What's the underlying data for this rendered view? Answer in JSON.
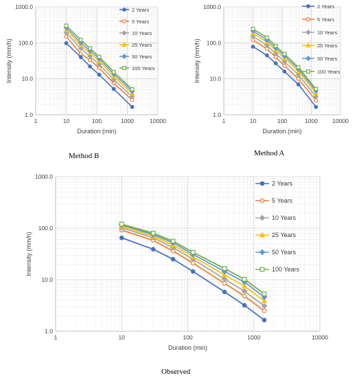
{
  "captions": {
    "b": "Method B",
    "a": "Method A",
    "obs": "Observed"
  },
  "chart_data": [
    {
      "type": "line",
      "panel": "Method B",
      "x_scale": "log",
      "y_scale": "log",
      "xlabel": "Duration (min)",
      "ylabel": "Intensity (mm/h)",
      "xlim": [
        1,
        10000
      ],
      "ylim": [
        1,
        1000
      ],
      "x_ticks": [
        "1",
        "10",
        "100",
        "1000",
        "10000"
      ],
      "y_ticks": [
        "1.0",
        "10.0",
        "100.0",
        "1000.0"
      ],
      "grid": true,
      "legend": "right",
      "x": [
        10,
        30,
        60,
        120,
        360,
        1440
      ],
      "series": [
        {
          "name": "2 Years",
          "color": "#4472C4",
          "marker": "circle",
          "values": [
            98,
            40,
            22,
            13,
            5.2,
            1.65
          ]
        },
        {
          "name": "5 Years",
          "color": "#ED7D31",
          "marker": "circle-open",
          "values": [
            150,
            50,
            33,
            20,
            7.5,
            2.6
          ]
        },
        {
          "name": "10 Years",
          "color": "#A5A5A5",
          "marker": "diamond",
          "values": [
            190,
            70,
            42,
            25,
            9.5,
            3.2
          ]
        },
        {
          "name": "25 Years",
          "color": "#FFC000",
          "marker": "triangle",
          "values": [
            230,
            85,
            52,
            31,
            11.5,
            3.9
          ]
        },
        {
          "name": "50 Years",
          "color": "#5B9BD5",
          "marker": "diamond",
          "values": [
            265,
            100,
            60,
            36,
            13.5,
            4.5
          ]
        },
        {
          "name": "100 Years",
          "color": "#70AD47",
          "marker": "square-open",
          "values": [
            300,
            120,
            70,
            41,
            15.5,
            5.1
          ]
        }
      ]
    },
    {
      "type": "line",
      "panel": "Method A",
      "x_scale": "log",
      "y_scale": "log",
      "xlabel": "Duration (min)",
      "ylabel": "Intensity (mm/h)",
      "xlim": [
        1,
        10000
      ],
      "ylim": [
        1,
        1000
      ],
      "x_ticks": [
        "1",
        "10",
        "100",
        "1000",
        "10000"
      ],
      "y_ticks": [
        "1.0",
        "10.0",
        "100.0",
        "1000.0"
      ],
      "grid": true,
      "legend": "right",
      "x": [
        10,
        30,
        60,
        120,
        360,
        1440
      ],
      "series": [
        {
          "name": "2 Years",
          "color": "#4472C4",
          "marker": "circle",
          "values": [
            78,
            45,
            27,
            16,
            7,
            1.65
          ]
        },
        {
          "name": "5 Years",
          "color": "#ED7D31",
          "marker": "circle-open",
          "values": [
            120,
            68,
            40,
            23,
            10,
            2.5
          ]
        },
        {
          "name": "10 Years",
          "color": "#A5A5A5",
          "marker": "diamond",
          "values": [
            150,
            85,
            50,
            30,
            13,
            3.2
          ]
        },
        {
          "name": "25 Years",
          "color": "#FFC000",
          "marker": "triangle",
          "values": [
            185,
            105,
            62,
            37,
            16,
            4
          ]
        },
        {
          "name": "50 Years",
          "color": "#5B9BD5",
          "marker": "diamond",
          "values": [
            215,
            120,
            72,
            43,
            18.5,
            4.6
          ]
        },
        {
          "name": "100 Years",
          "color": "#70AD47",
          "marker": "square-open",
          "values": [
            245,
            140,
            82,
            49,
            21,
            5.2
          ]
        }
      ]
    },
    {
      "type": "line",
      "panel": "Observed",
      "x_scale": "log",
      "y_scale": "log",
      "xlabel": "Duration (min)",
      "ylabel": "Intensity (mm/h)",
      "xlim": [
        1,
        10000
      ],
      "ylim": [
        1,
        1000
      ],
      "x_ticks": [
        "1",
        "10",
        "100",
        "1000",
        "10000"
      ],
      "y_ticks": [
        "1.0",
        "10.0",
        "100.0",
        "1000.0"
      ],
      "grid": true,
      "legend": "right",
      "x": [
        10,
        30,
        60,
        120,
        360,
        720,
        1440
      ],
      "series": [
        {
          "name": "2 Years",
          "color": "#4472C4",
          "marker": "circle",
          "values": [
            65,
            39,
            25,
            14.5,
            5.8,
            3.2,
            1.65
          ]
        },
        {
          "name": "5 Years",
          "color": "#ED7D31",
          "marker": "circle-open",
          "values": [
            92,
            58,
            36,
            21,
            8.5,
            4.8,
            2.5
          ]
        },
        {
          "name": "10 Years",
          "color": "#A5A5A5",
          "marker": "diamond",
          "values": [
            102,
            65,
            42,
            25,
            10.3,
            6,
            3.1
          ]
        },
        {
          "name": "25 Years",
          "color": "#FFC000",
          "marker": "triangle",
          "values": [
            110,
            70,
            47,
            28,
            12.5,
            7.5,
            3.9
          ]
        },
        {
          "name": "50 Years",
          "color": "#5B9BD5",
          "marker": "diamond",
          "values": [
            116,
            75,
            52,
            31,
            14.5,
            9,
            4.6
          ]
        },
        {
          "name": "100 Years",
          "color": "#70AD47",
          "marker": "square-open",
          "values": [
            120,
            80,
            56,
            34,
            16.5,
            10.2,
            5.3
          ]
        }
      ]
    }
  ]
}
